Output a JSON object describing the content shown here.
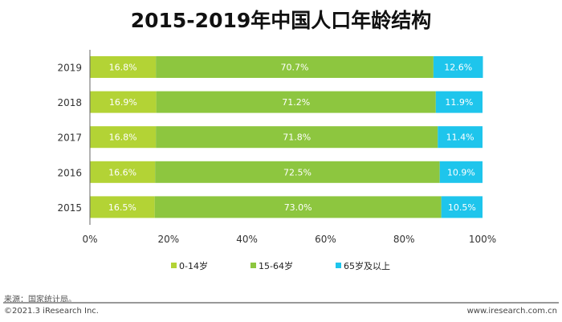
{
  "chart_data": {
    "type": "bar",
    "orientation": "horizontal",
    "stacked": true,
    "title": "2015-2019年中国人口年龄结构",
    "categories": [
      "2019",
      "2018",
      "2017",
      "2016",
      "2015"
    ],
    "series": [
      {
        "name": "0-14岁",
        "color": "#b3d335",
        "values": [
          16.8,
          16.9,
          16.8,
          16.6,
          16.5
        ]
      },
      {
        "name": "15-64岁",
        "color": "#8dc63f",
        "values": [
          70.7,
          71.2,
          71.8,
          72.5,
          73.0
        ]
      },
      {
        "name": "65岁及以上",
        "color": "#1ec5ec",
        "values": [
          12.6,
          11.9,
          11.4,
          10.9,
          10.5
        ]
      }
    ],
    "xlim": [
      0,
      100
    ],
    "xticks": [
      "0%",
      "20%",
      "40%",
      "60%",
      "80%",
      "100%"
    ],
    "legend": "bottom",
    "grid": false
  },
  "footer": {
    "source": "来源：国家统计局。",
    "copyright": "©2021.3 iResearch Inc.",
    "site": "www.iresearch.com.cn"
  }
}
